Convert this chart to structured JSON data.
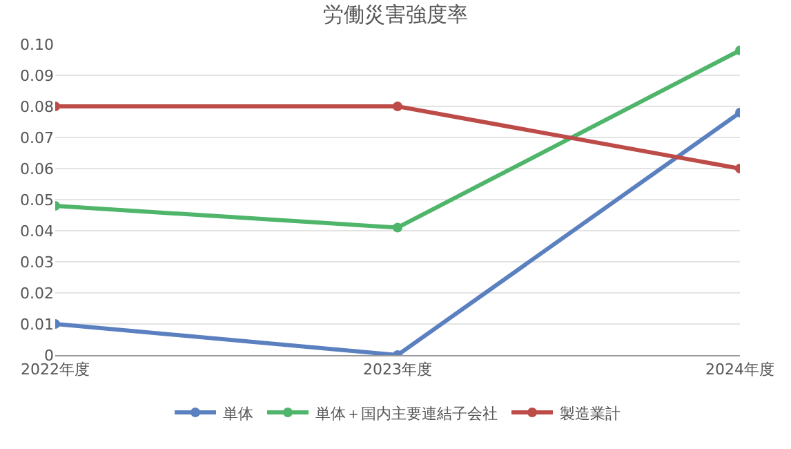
{
  "chart_data": {
    "type": "line",
    "title": "労働災害強度率",
    "categories": [
      "2022年度",
      "2023年度",
      "2024年度"
    ],
    "series": [
      {
        "name": "単体",
        "color": "#5b80c0",
        "values": [
          0.01,
          0,
          0.078
        ]
      },
      {
        "name": "単体＋国内主要連結子会社",
        "color": "#4fb56a",
        "values": [
          0.048,
          0.041,
          0.098
        ]
      },
      {
        "name": "製造業計",
        "color": "#bd4b47",
        "values": [
          0.08,
          0.08,
          0.06
        ]
      }
    ],
    "ylim": [
      0,
      0.1
    ],
    "yticks": [
      {
        "value": 0,
        "label": "0"
      },
      0.01,
      0.02,
      0.03,
      0.04,
      0.05,
      0.06,
      0.07,
      0.08,
      0.09,
      {
        "value": 0.1,
        "label": "0.10"
      }
    ],
    "grid": "y",
    "legend": "bottom",
    "marker": "circle",
    "line_style": "solid"
  }
}
